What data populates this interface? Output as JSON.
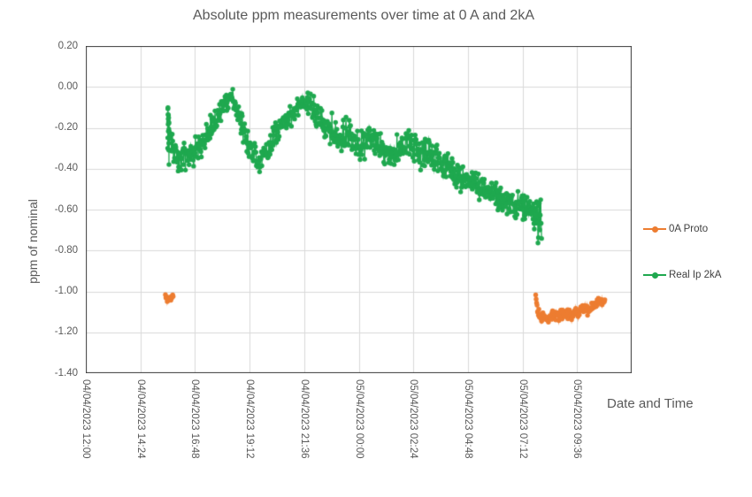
{
  "chart_data": {
    "type": "scatter",
    "title": "Absolute ppm measurements over time at 0 A and 2kA",
    "xlabel": "Date and Time",
    "ylabel": "ppm of nominal",
    "grid": true,
    "legend_position": "right",
    "ylim": [
      -1.4,
      0.2
    ],
    "y_tick_labels": [
      "0.20",
      "0.00",
      "-0.20",
      "-0.40",
      "-0.60",
      "-0.80",
      "-1.00",
      "-1.20",
      "-1.40"
    ],
    "x_tick_labels": [
      "04/04/2023 12:00",
      "04/04/2023 14:24",
      "04/04/2023 16:48",
      "04/04/2023 19:12",
      "04/04/2023 21:36",
      "05/04/2023 00:00",
      "05/04/2023 02:24",
      "05/04/2023 04:48",
      "05/04/2023 07:12",
      "05/04/2023 09:36"
    ],
    "x_axis_hours_span": 24,
    "x_axis_major_unit_hours": 2.4,
    "time_origin": "04/04/2023 12:00",
    "sample_step_hours": 0.02,
    "keypoint_format": "[hours_after_origin, ppm_center, ppm_halfwidth_of_noise_band]",
    "series": [
      {
        "name": "0A Proto",
        "color": "#ED7D31",
        "marker_radius": 2.7,
        "segments": [
          {
            "keypoints": [
              [
                3.5,
                -1.035,
                0.018
              ],
              [
                3.85,
                -1.033,
                0.018
              ]
            ]
          },
          {
            "keypoints": [
              [
                19.78,
                -1.02,
                0.004
              ],
              [
                19.82,
                -1.06,
                0.012
              ],
              [
                19.88,
                -1.105,
                0.022
              ],
              [
                19.98,
                -1.125,
                0.026
              ],
              [
                20.15,
                -1.12,
                0.025
              ],
              [
                20.35,
                -1.13,
                0.024
              ],
              [
                20.6,
                -1.115,
                0.025
              ],
              [
                20.85,
                -1.12,
                0.025
              ],
              [
                21.1,
                -1.105,
                0.025
              ],
              [
                21.35,
                -1.115,
                0.025
              ],
              [
                21.6,
                -1.1,
                0.025
              ],
              [
                21.8,
                -1.085,
                0.024
              ],
              [
                22.0,
                -1.095,
                0.024
              ],
              [
                22.2,
                -1.08,
                0.022
              ],
              [
                22.42,
                -1.062,
                0.022
              ],
              [
                22.62,
                -1.052,
                0.022
              ],
              [
                22.82,
                -1.058,
                0.02
              ]
            ]
          }
        ]
      },
      {
        "name": "Real Ip 2kA",
        "color": "#1FA84F",
        "marker_radius": 2.7,
        "clamp_max": -0.005,
        "segments": [
          {
            "step": 0.004,
            "keypoints": [
              [
                3.6,
                -0.2,
                0.195
              ],
              [
                3.66,
                -0.21,
                0.19
              ]
            ]
          },
          {
            "keypoints": [
              [
                3.66,
                -0.27,
                0.12
              ],
              [
                3.74,
                -0.31,
                0.09
              ],
              [
                3.9,
                -0.33,
                0.085
              ],
              [
                4.05,
                -0.355,
                0.085
              ],
              [
                4.2,
                -0.37,
                0.08
              ],
              [
                4.45,
                -0.34,
                0.07
              ],
              [
                4.8,
                -0.31,
                0.065
              ],
              [
                5.1,
                -0.28,
                0.06
              ],
              [
                5.5,
                -0.2,
                0.06
              ],
              [
                5.9,
                -0.13,
                0.055
              ],
              [
                6.2,
                -0.075,
                0.05
              ],
              [
                6.45,
                -0.05,
                0.048
              ],
              [
                6.7,
                -0.13,
                0.06
              ],
              [
                7.0,
                -0.25,
                0.065
              ],
              [
                7.35,
                -0.33,
                0.06
              ],
              [
                7.65,
                -0.375,
                0.055
              ],
              [
                7.95,
                -0.31,
                0.06
              ],
              [
                8.3,
                -0.24,
                0.06
              ],
              [
                8.7,
                -0.17,
                0.058
              ],
              [
                9.1,
                -0.12,
                0.055
              ],
              [
                9.45,
                -0.09,
                0.05
              ],
              [
                9.75,
                -0.073,
                0.05
              ],
              [
                10.0,
                -0.11,
                0.06
              ],
              [
                10.4,
                -0.18,
                0.065
              ],
              [
                10.8,
                -0.235,
                0.07
              ],
              [
                11.15,
                -0.26,
                0.07
              ],
              [
                11.45,
                -0.21,
                0.07
              ],
              [
                11.8,
                -0.255,
                0.075
              ],
              [
                12.15,
                -0.285,
                0.075
              ],
              [
                12.5,
                -0.245,
                0.07
              ],
              [
                12.9,
                -0.295,
                0.075
              ],
              [
                13.3,
                -0.35,
                0.075
              ],
              [
                13.65,
                -0.305,
                0.07
              ],
              [
                13.95,
                -0.27,
                0.07
              ],
              [
                14.35,
                -0.3,
                0.072
              ],
              [
                14.75,
                -0.325,
                0.07
              ],
              [
                15.1,
                -0.31,
                0.065
              ],
              [
                15.5,
                -0.355,
                0.065
              ],
              [
                15.9,
                -0.385,
                0.065
              ],
              [
                16.3,
                -0.425,
                0.07
              ],
              [
                16.7,
                -0.455,
                0.062
              ],
              [
                17.1,
                -0.47,
                0.06
              ],
              [
                17.5,
                -0.5,
                0.06
              ],
              [
                17.9,
                -0.525,
                0.06
              ],
              [
                18.3,
                -0.55,
                0.06
              ],
              [
                18.65,
                -0.565,
                0.06
              ],
              [
                19.0,
                -0.575,
                0.06
              ],
              [
                19.35,
                -0.585,
                0.06
              ],
              [
                19.6,
                -0.62,
                0.062
              ],
              [
                19.8,
                -0.655,
                0.075
              ],
              [
                19.95,
                -0.68,
                0.13
              ],
              [
                20.05,
                -0.665,
                0.13
              ]
            ]
          }
        ]
      }
    ],
    "colors": {
      "gridline": "#D9D9D9",
      "plot_border": "#3A3A3A",
      "text": "#595959",
      "legend_text": "#404040"
    }
  }
}
